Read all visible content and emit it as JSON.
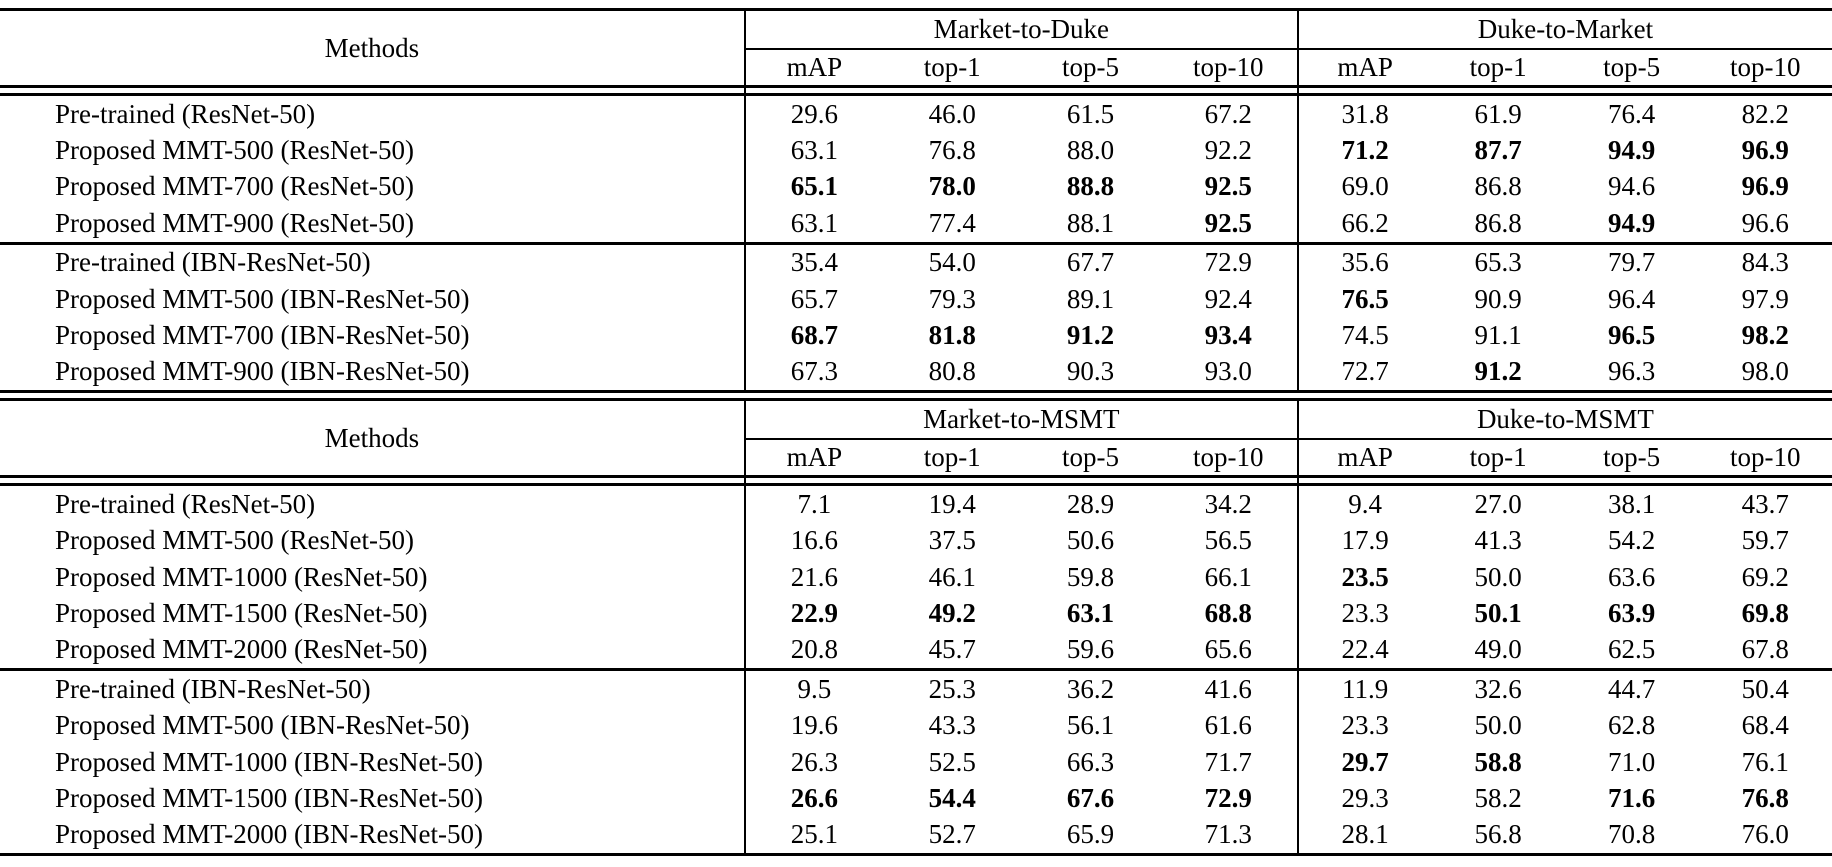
{
  "tables": [
    {
      "name": "market-duke-results",
      "methods_header": "Methods",
      "groups": [
        {
          "label": "Market-to-Duke"
        },
        {
          "label": "Duke-to-Market"
        }
      ],
      "col_labels": [
        "mAP",
        "top-1",
        "top-5",
        "top-10",
        "mAP",
        "top-1",
        "top-5",
        "top-10"
      ],
      "rows": [
        {
          "method": "Pre-trained (ResNet-50)",
          "values": [
            "29.6",
            "46.0",
            "61.5",
            "67.2",
            "31.8",
            "61.9",
            "76.4",
            "82.2"
          ],
          "bold": [
            false,
            false,
            false,
            false,
            false,
            false,
            false,
            false
          ],
          "rule_above": false
        },
        {
          "method": "Proposed MMT-500 (ResNet-50)",
          "values": [
            "63.1",
            "76.8",
            "88.0",
            "92.2",
            "71.2",
            "87.7",
            "94.9",
            "96.9"
          ],
          "bold": [
            false,
            false,
            false,
            false,
            true,
            true,
            true,
            true
          ],
          "rule_above": false
        },
        {
          "method": "Proposed MMT-700 (ResNet-50)",
          "values": [
            "65.1",
            "78.0",
            "88.8",
            "92.5",
            "69.0",
            "86.8",
            "94.6",
            "96.9"
          ],
          "bold": [
            true,
            true,
            true,
            true,
            false,
            false,
            false,
            true
          ],
          "rule_above": false
        },
        {
          "method": "Proposed MMT-900 (ResNet-50)",
          "values": [
            "63.1",
            "77.4",
            "88.1",
            "92.5",
            "66.2",
            "86.8",
            "94.9",
            "96.6"
          ],
          "bold": [
            false,
            false,
            false,
            true,
            false,
            false,
            true,
            false
          ],
          "rule_above": false
        },
        {
          "method": "Pre-trained (IBN-ResNet-50)",
          "values": [
            "35.4",
            "54.0",
            "67.7",
            "72.9",
            "35.6",
            "65.3",
            "79.7",
            "84.3"
          ],
          "bold": [
            false,
            false,
            false,
            false,
            false,
            false,
            false,
            false
          ],
          "rule_above": true
        },
        {
          "method": "Proposed MMT-500 (IBN-ResNet-50)",
          "values": [
            "65.7",
            "79.3",
            "89.1",
            "92.4",
            "76.5",
            "90.9",
            "96.4",
            "97.9"
          ],
          "bold": [
            false,
            false,
            false,
            false,
            true,
            false,
            false,
            false
          ],
          "rule_above": false
        },
        {
          "method": "Proposed MMT-700 (IBN-ResNet-50)",
          "values": [
            "68.7",
            "81.8",
            "91.2",
            "93.4",
            "74.5",
            "91.1",
            "96.5",
            "98.2"
          ],
          "bold": [
            true,
            true,
            true,
            true,
            false,
            false,
            true,
            true
          ],
          "rule_above": false
        },
        {
          "method": "Proposed MMT-900 (IBN-ResNet-50)",
          "values": [
            "67.3",
            "80.8",
            "90.3",
            "93.0",
            "72.7",
            "91.2",
            "96.3",
            "98.0"
          ],
          "bold": [
            false,
            false,
            false,
            false,
            false,
            true,
            false,
            false
          ],
          "rule_above": false
        }
      ]
    },
    {
      "name": "msmt-results",
      "methods_header": "Methods",
      "groups": [
        {
          "label": "Market-to-MSMT"
        },
        {
          "label": "Duke-to-MSMT"
        }
      ],
      "col_labels": [
        "mAP",
        "top-1",
        "top-5",
        "top-10",
        "mAP",
        "top-1",
        "top-5",
        "top-10"
      ],
      "rows": [
        {
          "method": "Pre-trained (ResNet-50)",
          "values": [
            "7.1",
            "19.4",
            "28.9",
            "34.2",
            "9.4",
            "27.0",
            "38.1",
            "43.7"
          ],
          "bold": [
            false,
            false,
            false,
            false,
            false,
            false,
            false,
            false
          ],
          "rule_above": false
        },
        {
          "method": "Proposed MMT-500 (ResNet-50)",
          "values": [
            "16.6",
            "37.5",
            "50.6",
            "56.5",
            "17.9",
            "41.3",
            "54.2",
            "59.7"
          ],
          "bold": [
            false,
            false,
            false,
            false,
            false,
            false,
            false,
            false
          ],
          "rule_above": false
        },
        {
          "method": "Proposed MMT-1000 (ResNet-50)",
          "values": [
            "21.6",
            "46.1",
            "59.8",
            "66.1",
            "23.5",
            "50.0",
            "63.6",
            "69.2"
          ],
          "bold": [
            false,
            false,
            false,
            false,
            true,
            false,
            false,
            false
          ],
          "rule_above": false
        },
        {
          "method": "Proposed MMT-1500 (ResNet-50)",
          "values": [
            "22.9",
            "49.2",
            "63.1",
            "68.8",
            "23.3",
            "50.1",
            "63.9",
            "69.8"
          ],
          "bold": [
            true,
            true,
            true,
            true,
            false,
            true,
            true,
            true
          ],
          "rule_above": false
        },
        {
          "method": "Proposed MMT-2000 (ResNet-50)",
          "values": [
            "20.8",
            "45.7",
            "59.6",
            "65.6",
            "22.4",
            "49.0",
            "62.5",
            "67.8"
          ],
          "bold": [
            false,
            false,
            false,
            false,
            false,
            false,
            false,
            false
          ],
          "rule_above": false
        },
        {
          "method": "Pre-trained (IBN-ResNet-50)",
          "values": [
            "9.5",
            "25.3",
            "36.2",
            "41.6",
            "11.9",
            "32.6",
            "44.7",
            "50.4"
          ],
          "bold": [
            false,
            false,
            false,
            false,
            false,
            false,
            false,
            false
          ],
          "rule_above": true
        },
        {
          "method": "Proposed MMT-500 (IBN-ResNet-50)",
          "values": [
            "19.6",
            "43.3",
            "56.1",
            "61.6",
            "23.3",
            "50.0",
            "62.8",
            "68.4"
          ],
          "bold": [
            false,
            false,
            false,
            false,
            false,
            false,
            false,
            false
          ],
          "rule_above": false
        },
        {
          "method": "Proposed MMT-1000 (IBN-ResNet-50)",
          "values": [
            "26.3",
            "52.5",
            "66.3",
            "71.7",
            "29.7",
            "58.8",
            "71.0",
            "76.1"
          ],
          "bold": [
            false,
            false,
            false,
            false,
            true,
            true,
            false,
            false
          ],
          "rule_above": false
        },
        {
          "method": "Proposed MMT-1500 (IBN-ResNet-50)",
          "values": [
            "26.6",
            "54.4",
            "67.6",
            "72.9",
            "29.3",
            "58.2",
            "71.6",
            "76.8"
          ],
          "bold": [
            true,
            true,
            true,
            true,
            false,
            false,
            true,
            true
          ],
          "rule_above": false
        },
        {
          "method": "Proposed MMT-2000 (IBN-ResNet-50)",
          "values": [
            "25.1",
            "52.7",
            "65.9",
            "71.3",
            "28.1",
            "56.8",
            "70.8",
            "76.0"
          ],
          "bold": [
            false,
            false,
            false,
            false,
            false,
            false,
            false,
            false
          ],
          "rule_above": false
        }
      ]
    }
  ]
}
